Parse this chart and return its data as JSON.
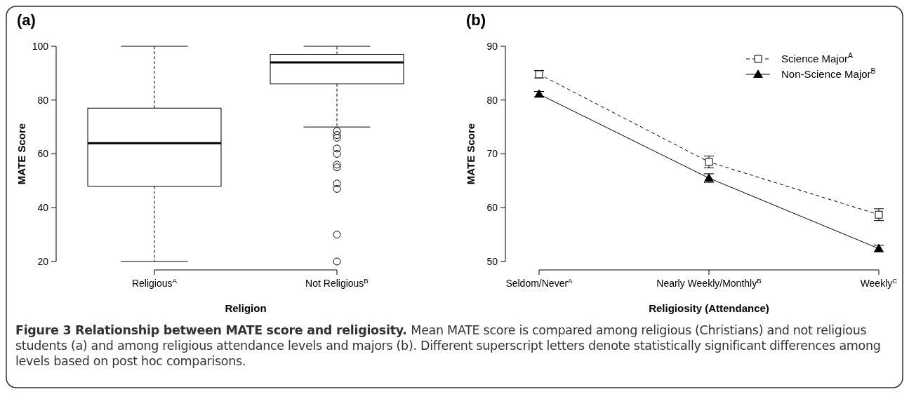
{
  "chart_data": [
    {
      "type": "box",
      "title": "(a)",
      "xlabel": "Religion",
      "ylabel": "MATE Score",
      "categories": [
        "Religious$^{A}$",
        "Not Religious$^{B}$"
      ],
      "boxes": [
        {
          "low": 20,
          "q1": 48,
          "median": 64,
          "q3": 77,
          "high": 100
        },
        {
          "low": 70,
          "q1": 86,
          "median": 94,
          "q3": 97,
          "high": 100,
          "outliers": [
            68.5,
            67,
            66,
            62,
            60,
            56,
            55,
            49,
            47,
            30,
            20
          ]
        }
      ],
      "ylim": [
        20,
        100
      ],
      "yticks": [
        20,
        40,
        60,
        80,
        100
      ],
      "grid": false
    },
    {
      "type": "line",
      "title": "(b)",
      "xlabel": "Religiosity (Attendance)",
      "ylabel": "MATE Score",
      "categories": [
        "Seldom/Never$^{A}$",
        "Nearly Weekly/Monthly$^{B}$",
        "Weekly$^{C}$"
      ],
      "series": [
        {
          "name": "Science Major$^{A}$",
          "color": "#000000",
          "values": [
            84.8,
            68.5,
            58.7
          ],
          "errors": [
            0.7,
            1.1,
            1.1
          ],
          "marker": "square",
          "line_style": "dashed"
        },
        {
          "name": "Non-Science Major$^{B}$",
          "color": "#000000",
          "values": [
            81.1,
            65.5,
            52.4
          ],
          "errors": [
            0.5,
            0.8,
            0.6
          ],
          "marker": "triangle",
          "line_style": "solid"
        }
      ],
      "ylim": [
        50,
        90
      ],
      "yticks": [
        50,
        60,
        70,
        80,
        90
      ],
      "grid": false,
      "legend": "top right",
      "annotations": [
        "Figure 3 Relationship between MATE score and religiosity.",
        "Mean MATE score is compared among religious (Christians) and not religious students (a) and among religious attendance levels and majors (b). Different superscript letters denote statistically significant differences among levels based on post hoc comparisons."
      ]
    }
  ]
}
